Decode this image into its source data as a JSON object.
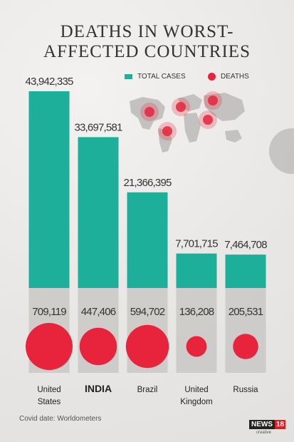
{
  "title_line1": "DEATHS IN WORST-",
  "title_line2": "AFFECTED COUNTRIES",
  "legend": {
    "total": "TOTAL CASES",
    "deaths": "DEATHS"
  },
  "source": "Covid date: Worldometers",
  "logo": {
    "news": "NEWS",
    "num": "18",
    "sub": "creative"
  },
  "colors": {
    "total": "#1eaf9b",
    "deaths": "#e8243c",
    "band": "#c9c8c6"
  },
  "chart_data": {
    "type": "bar",
    "categories": [
      "United States",
      "INDIA",
      "Brazil",
      "United Kingdom",
      "Russia"
    ],
    "category_labels": [
      [
        "United",
        "States"
      ],
      [
        "INDIA"
      ],
      [
        "Brazil"
      ],
      [
        "United",
        "Kingdom"
      ],
      [
        "Russia"
      ]
    ],
    "series": [
      {
        "name": "TOTAL CASES",
        "values": [
          43942335,
          33697581,
          21366395,
          7701715,
          7464708
        ],
        "labels": [
          "43,942,335",
          "33,697,581",
          "21,366,395",
          "7,701,715",
          "7,464,708"
        ]
      },
      {
        "name": "DEATHS",
        "values": [
          709119,
          447406,
          594702,
          136208,
          205531
        ],
        "labels": [
          "709,119",
          "447,406",
          "594,702",
          "136,208",
          "205,531"
        ]
      }
    ],
    "highlight_category": "INDIA"
  }
}
